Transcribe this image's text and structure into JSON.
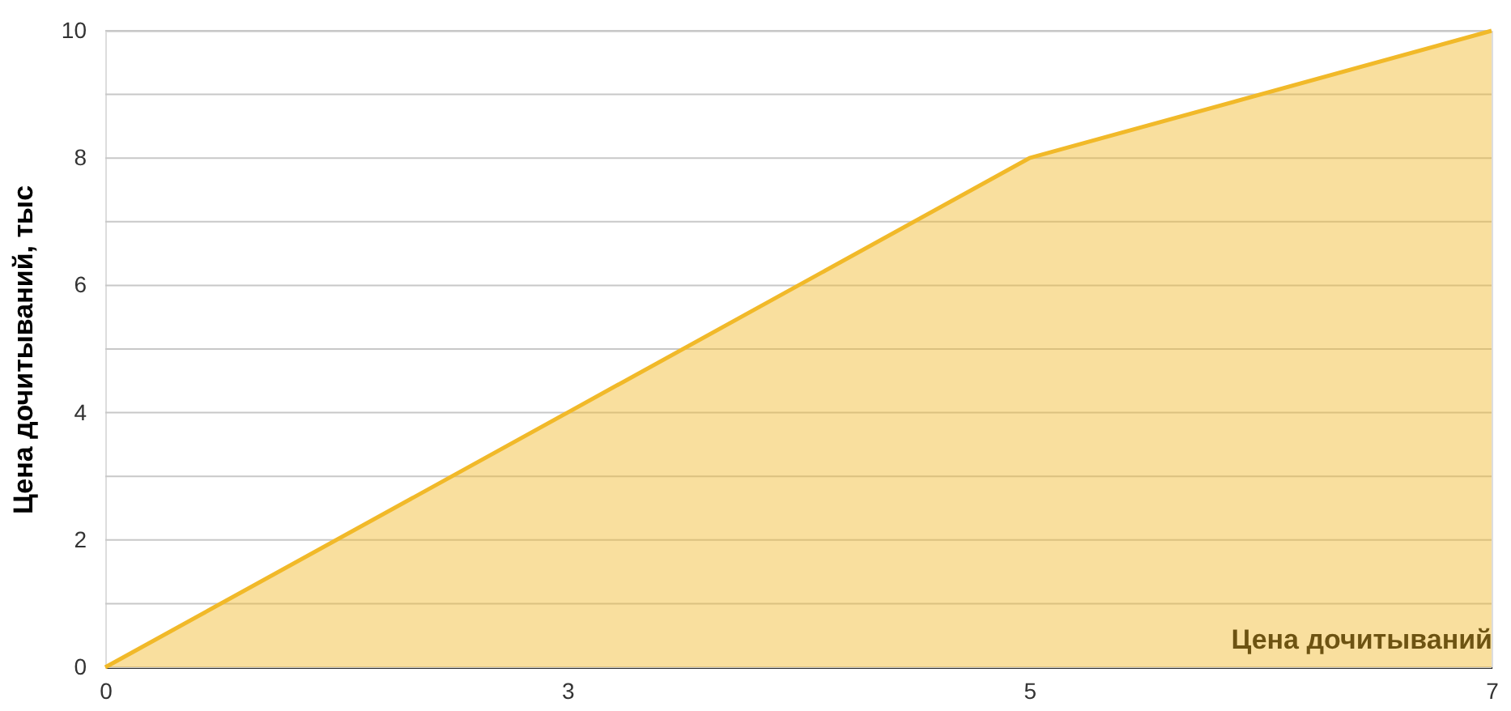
{
  "chart_data": {
    "type": "area",
    "xlabel": "Цена дочитываний",
    "ylabel": "Цена дочитываний, тыс",
    "categories": [
      "0",
      "3",
      "5",
      "7"
    ],
    "series": [
      {
        "color": "#f1b929",
        "values": [
          0,
          4,
          8,
          10
        ]
      }
    ],
    "ylim": [
      0,
      10
    ],
    "yticks": [
      0,
      {
        "value": 1,
        "label": null
      },
      2,
      {
        "value": 3,
        "label": null
      },
      4,
      {
        "value": 5,
        "label": null
      },
      6,
      {
        "value": 7,
        "label": null
      },
      8,
      {
        "value": 9,
        "label": null
      },
      10
    ],
    "grid": "y"
  }
}
